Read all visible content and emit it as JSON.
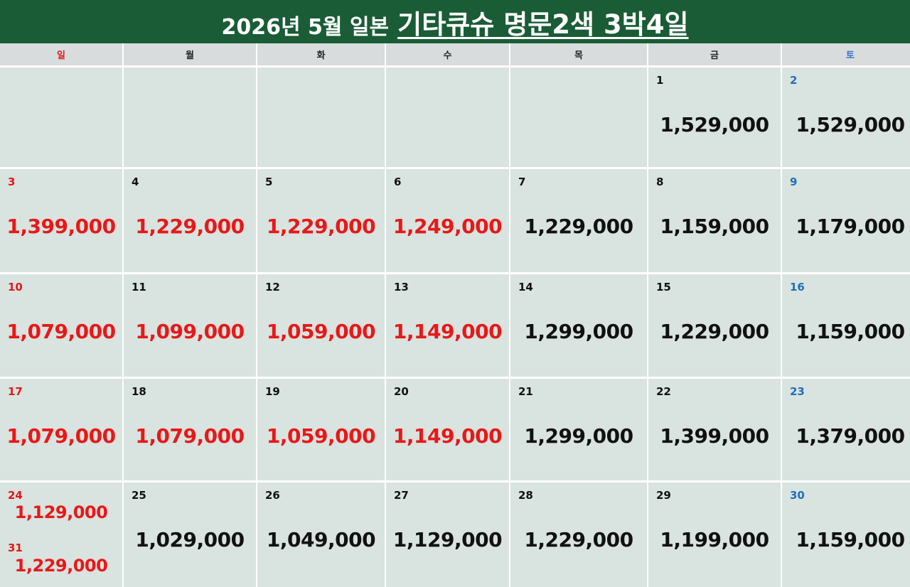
{
  "title": {
    "prefix": "2026년 5월 일본",
    "main": "기타큐슈 명문2색 3박4일"
  },
  "weekdays": [
    "일",
    "월",
    "화",
    "수",
    "목",
    "금",
    "토"
  ],
  "colors": {
    "title_bg": "#1a5c36",
    "sunday": "#e01818",
    "saturday": "#1f6fb8",
    "highlight_price": "#e81818",
    "cell_bg": "#d9e3df"
  },
  "weeks": [
    [
      {
        "day": "",
        "price": "",
        "red": false
      },
      {
        "day": "",
        "price": "",
        "red": false
      },
      {
        "day": "",
        "price": "",
        "red": false
      },
      {
        "day": "",
        "price": "",
        "red": false
      },
      {
        "day": "",
        "price": "",
        "red": false
      },
      {
        "day": "1",
        "price": "1,529,000",
        "red": false
      },
      {
        "day": "2",
        "price": "1,529,000",
        "red": false
      }
    ],
    [
      {
        "day": "3",
        "price": "1,399,000",
        "red": true
      },
      {
        "day": "4",
        "price": "1,229,000",
        "red": true
      },
      {
        "day": "5",
        "price": "1,229,000",
        "red": true
      },
      {
        "day": "6",
        "price": "1,249,000",
        "red": true
      },
      {
        "day": "7",
        "price": "1,229,000",
        "red": false
      },
      {
        "day": "8",
        "price": "1,159,000",
        "red": false
      },
      {
        "day": "9",
        "price": "1,179,000",
        "red": false
      }
    ],
    [
      {
        "day": "10",
        "price": "1,079,000",
        "red": true
      },
      {
        "day": "11",
        "price": "1,099,000",
        "red": true
      },
      {
        "day": "12",
        "price": "1,059,000",
        "red": true
      },
      {
        "day": "13",
        "price": "1,149,000",
        "red": true
      },
      {
        "day": "14",
        "price": "1,299,000",
        "red": false
      },
      {
        "day": "15",
        "price": "1,229,000",
        "red": false
      },
      {
        "day": "16",
        "price": "1,159,000",
        "red": false
      }
    ],
    [
      {
        "day": "17",
        "price": "1,079,000",
        "red": true
      },
      {
        "day": "18",
        "price": "1,079,000",
        "red": true
      },
      {
        "day": "19",
        "price": "1,059,000",
        "red": true
      },
      {
        "day": "20",
        "price": "1,149,000",
        "red": true
      },
      {
        "day": "21",
        "price": "1,299,000",
        "red": false
      },
      {
        "day": "22",
        "price": "1,399,000",
        "red": false
      },
      {
        "day": "23",
        "price": "1,379,000",
        "red": false
      }
    ],
    [
      {
        "day": "24",
        "price": "1,129,000",
        "red": true,
        "day2": "31",
        "price2": "1,229,000"
      },
      {
        "day": "25",
        "price": "1,029,000",
        "red": false
      },
      {
        "day": "26",
        "price": "1,049,000",
        "red": false
      },
      {
        "day": "27",
        "price": "1,129,000",
        "red": false
      },
      {
        "day": "28",
        "price": "1,229,000",
        "red": false
      },
      {
        "day": "29",
        "price": "1,199,000",
        "red": false
      },
      {
        "day": "30",
        "price": "1,159,000",
        "red": false
      }
    ]
  ]
}
